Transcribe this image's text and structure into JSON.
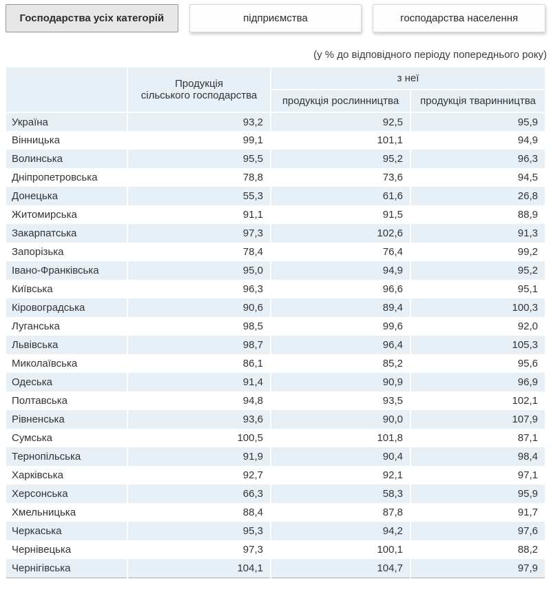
{
  "tabs": [
    {
      "label": "Господарства усіх категорій",
      "active": true
    },
    {
      "label": "підприємства",
      "active": false
    },
    {
      "label": "господарства населення",
      "active": false
    }
  ],
  "subtitle": "(у % до відповідного періоду попереднього року)",
  "table": {
    "header": {
      "product_line1": "Продукція",
      "product_line2": "сільського господарства",
      "group": "з неї",
      "crop": "продукція рослинництва",
      "livestock": "продукція тваринництва"
    },
    "rows": [
      {
        "region": "Україна",
        "total": "93,2",
        "crop": "92,5",
        "livestock": "95,9"
      },
      {
        "region": "Вінницька",
        "total": "99,1",
        "crop": "101,1",
        "livestock": "94,9"
      },
      {
        "region": "Волинська",
        "total": "95,5",
        "crop": "95,2",
        "livestock": "96,3"
      },
      {
        "region": "Дніпропетровська",
        "total": "78,8",
        "crop": "73,6",
        "livestock": "94,5"
      },
      {
        "region": "Донецька",
        "total": "55,3",
        "crop": "61,6",
        "livestock": "26,8"
      },
      {
        "region": "Житомирська",
        "total": "91,1",
        "crop": "91,5",
        "livestock": "88,9"
      },
      {
        "region": "Закарпатська",
        "total": "97,3",
        "crop": "102,6",
        "livestock": "91,3"
      },
      {
        "region": "Запорізька",
        "total": "78,4",
        "crop": "76,4",
        "livestock": "99,2"
      },
      {
        "region": "Івано-Франківська",
        "total": "95,0",
        "crop": "94,9",
        "livestock": "95,2"
      },
      {
        "region": "Київська",
        "total": "96,3",
        "crop": "96,6",
        "livestock": "95,1"
      },
      {
        "region": "Кіровоградська",
        "total": "90,6",
        "crop": "89,4",
        "livestock": "100,3"
      },
      {
        "region": "Луганська",
        "total": "98,5",
        "crop": "99,6",
        "livestock": "92,0"
      },
      {
        "region": "Львівська",
        "total": "98,7",
        "crop": "96,4",
        "livestock": "105,3"
      },
      {
        "region": "Миколаївська",
        "total": "86,1",
        "crop": "85,2",
        "livestock": "95,6"
      },
      {
        "region": "Одеська",
        "total": "91,4",
        "crop": "90,9",
        "livestock": "96,9"
      },
      {
        "region": "Полтавська",
        "total": "94,8",
        "crop": "93,5",
        "livestock": "102,1"
      },
      {
        "region": "Рівненська",
        "total": "93,6",
        "crop": "90,0",
        "livestock": "107,9"
      },
      {
        "region": "Сумська",
        "total": "100,5",
        "crop": "101,8",
        "livestock": "87,1"
      },
      {
        "region": "Тернопільська",
        "total": "91,9",
        "crop": "90,4",
        "livestock": "98,4"
      },
      {
        "region": "Харківська",
        "total": "92,7",
        "crop": "92,1",
        "livestock": "97,1"
      },
      {
        "region": "Херсонська",
        "total": "66,3",
        "crop": "58,3",
        "livestock": "95,9"
      },
      {
        "region": "Хмельницька",
        "total": "88,4",
        "crop": "87,8",
        "livestock": "91,7"
      },
      {
        "region": "Черкаська",
        "total": "95,3",
        "crop": "94,2",
        "livestock": "97,6"
      },
      {
        "region": "Чернівецька",
        "total": "97,3",
        "crop": "100,1",
        "livestock": "88,2"
      },
      {
        "region": "Чернігівська",
        "total": "104,1",
        "crop": "104,7",
        "livestock": "97,9"
      }
    ]
  }
}
